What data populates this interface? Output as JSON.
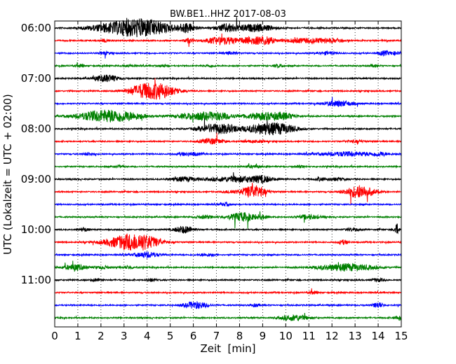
{
  "chart_data": {
    "type": "line",
    "title": "BW.BE1..HHZ 2017-08-03",
    "xlabel": "Zeit  [min]",
    "ylabel": "UTC (Lokalzeit = UTC + 02:00)",
    "xlim": [
      0,
      15
    ],
    "x_ticks": [
      "0",
      "1",
      "2",
      "3",
      "4",
      "5",
      "6",
      "7",
      "8",
      "9",
      "10",
      "11",
      "12",
      "13",
      "14",
      "15"
    ],
    "y_ticks": [
      {
        "label": "06:00",
        "row": 0
      },
      {
        "label": "07:00",
        "row": 4
      },
      {
        "label": "08:00",
        "row": 8
      },
      {
        "label": "09:00",
        "row": 12
      },
      {
        "label": "10:00",
        "row": 16
      },
      {
        "label": "11:00",
        "row": 20
      }
    ],
    "grid": "vertical dotted at each minute",
    "colors": [
      "#000000",
      "#ff0000",
      "#0000ff",
      "#008000"
    ],
    "traces": [
      {
        "start": "06:00",
        "color": "#000000",
        "events": [
          [
            2.0,
            2,
            0.9
          ],
          [
            2.6,
            2,
            0.9
          ],
          [
            3.1,
            3,
            1.2
          ],
          [
            3.6,
            5,
            1.0
          ],
          [
            4.0,
            5,
            1.1
          ],
          [
            4.5,
            2,
            0.8
          ],
          [
            5.6,
            3,
            0.4
          ],
          [
            5.8,
            4,
            0.3
          ],
          [
            7.4,
            4,
            0.4
          ],
          [
            7.8,
            3,
            0.6
          ],
          [
            8.7,
            3,
            0.6
          ],
          [
            9.0,
            2,
            0.7
          ]
        ]
      },
      {
        "start": "06:15",
        "color": "#ff0000",
        "events": [
          [
            2.2,
            2,
            0.2
          ],
          [
            5.8,
            3,
            0.2
          ],
          [
            7.2,
            5,
            0.7
          ],
          [
            8.6,
            5,
            0.6
          ],
          [
            9.2,
            4,
            0.3
          ],
          [
            10.8,
            3,
            1.0
          ],
          [
            11.8,
            2,
            0.4
          ],
          [
            12.3,
            2,
            0.2
          ]
        ]
      },
      {
        "start": "06:30",
        "color": "#0000ff",
        "events": [
          [
            2.2,
            2,
            0.2
          ],
          [
            7.6,
            2,
            0.3
          ],
          [
            11.8,
            2,
            0.4
          ],
          [
            14.2,
            3,
            0.2
          ],
          [
            14.7,
            2,
            0.4
          ]
        ]
      },
      {
        "start": "06:45",
        "color": "#008000",
        "events": [
          [
            1.1,
            2,
            0.2
          ],
          [
            3.2,
            1.5,
            0.2
          ],
          [
            4.7,
            1.5,
            0.2
          ],
          [
            6.7,
            1.5,
            0.2
          ],
          [
            9.7,
            2,
            0.2
          ],
          [
            13.8,
            1.5,
            0.2
          ]
        ]
      },
      {
        "start": "07:00",
        "color": "#000000",
        "events": [
          [
            2.25,
            5,
            0.5
          ]
        ]
      },
      {
        "start": "07:15",
        "color": "#ff0000",
        "events": [
          [
            3.8,
            5,
            0.6
          ],
          [
            4.3,
            7,
            0.9
          ],
          [
            4.7,
            4,
            0.5
          ]
        ]
      },
      {
        "start": "07:30",
        "color": "#0000ff",
        "events": [
          [
            12.3,
            4,
            0.6
          ]
        ]
      },
      {
        "start": "07:45",
        "color": "#008000",
        "events": [
          [
            1.8,
            3,
            1.0
          ],
          [
            2.4,
            6,
            1.2
          ],
          [
            3.3,
            2,
            0.8
          ],
          [
            6.3,
            5,
            1.0
          ],
          [
            7.2,
            3,
            0.5
          ],
          [
            9.2,
            5,
            1.0
          ],
          [
            10.0,
            2,
            0.4
          ]
        ]
      },
      {
        "start": "08:00",
        "color": "#000000",
        "events": [
          [
            6.9,
            6,
            0.7
          ],
          [
            7.6,
            3,
            0.5
          ],
          [
            9.2,
            8,
            0.9
          ],
          [
            10.0,
            3,
            0.5
          ]
        ]
      },
      {
        "start": "08:15",
        "color": "#ff0000",
        "events": [
          [
            6.8,
            4,
            0.5
          ],
          [
            8.6,
            1.5,
            0.5
          ],
          [
            13.0,
            1.5,
            0.4
          ]
        ]
      },
      {
        "start": "08:30",
        "color": "#0000ff",
        "events": [
          [
            1.5,
            2,
            0.2
          ],
          [
            5.6,
            2,
            0.3
          ],
          [
            6.1,
            2,
            0.3
          ],
          [
            12.7,
            3,
            1.2
          ],
          [
            14.1,
            2,
            0.3
          ]
        ]
      },
      {
        "start": "08:45",
        "color": "#008000",
        "events": [
          [
            2.8,
            1.5,
            0.2
          ],
          [
            8.6,
            1.5,
            0.3
          ],
          [
            10.6,
            1.5,
            0.2
          ]
        ]
      },
      {
        "start": "09:00",
        "color": "#000000",
        "events": [
          [
            5.6,
            3,
            0.6
          ],
          [
            8.0,
            4,
            1.2
          ],
          [
            9.0,
            3,
            0.4
          ],
          [
            11.5,
            2,
            0.3
          ],
          [
            12.2,
            2,
            0.4
          ]
        ]
      },
      {
        "start": "09:15",
        "color": "#ff0000",
        "events": [
          [
            7.6,
            2,
            0.3
          ],
          [
            8.6,
            9,
            0.5
          ],
          [
            13.2,
            9,
            0.6
          ]
        ]
      },
      {
        "start": "09:30",
        "color": "#0000ff",
        "events": [
          [
            7.4,
            2,
            0.2
          ]
        ]
      },
      {
        "start": "09:45",
        "color": "#008000",
        "events": [
          [
            6.5,
            2,
            0.4
          ],
          [
            8.1,
            6,
            0.6
          ],
          [
            9.0,
            2,
            0.3
          ],
          [
            11.0,
            3,
            0.5
          ]
        ]
      },
      {
        "start": "10:00",
        "color": "#000000",
        "events": [
          [
            1.3,
            2,
            0.2
          ],
          [
            5.6,
            5,
            0.4
          ],
          [
            12.9,
            2,
            0.3
          ],
          [
            14.8,
            8,
            0.1
          ]
        ]
      },
      {
        "start": "10:15",
        "color": "#ff0000",
        "events": [
          [
            3.3,
            11,
            1.0
          ],
          [
            4.0,
            3,
            0.6
          ],
          [
            12.5,
            3,
            0.2
          ]
        ]
      },
      {
        "start": "10:30",
        "color": "#0000ff",
        "events": [
          [
            4.0,
            4,
            0.5
          ],
          [
            6.6,
            2,
            0.3
          ]
        ]
      },
      {
        "start": "10:45",
        "color": "#008000",
        "events": [
          [
            0.9,
            4,
            0.5
          ],
          [
            2.1,
            2,
            0.3
          ],
          [
            3.2,
            2,
            0.3
          ],
          [
            12.6,
            5,
            1.2
          ]
        ]
      },
      {
        "start": "11:00",
        "color": "#000000",
        "events": [
          [
            1.8,
            2,
            0.2
          ],
          [
            4.2,
            2,
            0.2
          ],
          [
            14.0,
            2,
            0.3
          ]
        ]
      },
      {
        "start": "11:15",
        "color": "#ff0000",
        "events": [
          [
            11.2,
            2,
            0.2
          ]
        ]
      },
      {
        "start": "11:30",
        "color": "#0000ff",
        "events": [
          [
            6.1,
            5,
            0.5
          ],
          [
            8.7,
            2,
            0.2
          ],
          [
            14.0,
            4,
            0.2
          ]
        ]
      },
      {
        "start": "11:45",
        "color": "#008000",
        "events": [
          [
            10.4,
            4,
            0.6
          ],
          [
            14.9,
            3,
            0.2
          ]
        ]
      }
    ]
  }
}
